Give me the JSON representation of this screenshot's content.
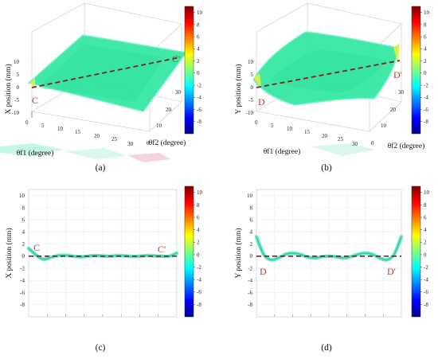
{
  "colormap": {
    "ticks": [
      10,
      8,
      6,
      4,
      2,
      0,
      -2,
      -4,
      -6,
      -8
    ],
    "range": [
      -10,
      11
    ],
    "stops": [
      "#00008f",
      "#0000ff",
      "#0080ff",
      "#00ffff",
      "#80ff80",
      "#ffff00",
      "#ff8000",
      "#ff0000",
      "#800000"
    ]
  },
  "colors": {
    "surface": "#37e8a4",
    "surface_edge": "#72f0c8",
    "dashed_line": "#8b1a1a",
    "point_label": "#c0392b"
  },
  "chart_data": [
    {
      "type": "surface3d",
      "panel_label": "(a)",
      "zlabel": "X position (mm)",
      "xlabel": "θf1 (degree)",
      "ylabel": "θf2 (degree)",
      "x_ticks": [
        "0",
        "5",
        "10",
        "15",
        "20",
        "25",
        "30"
      ],
      "y_ticks": [
        "0",
        "10",
        "20",
        "30"
      ],
      "z_ticks": [
        "-10",
        "-5",
        "0",
        "5",
        "10"
      ],
      "xlim": [
        0,
        30
      ],
      "ylim": [
        0,
        30
      ],
      "zlim": [
        -10,
        10
      ],
      "start_label": "C",
      "end_label": "C'",
      "corner_values": [
        {
          "x": 0,
          "y": 0,
          "z": 0
        },
        {
          "x": 30,
          "y": 30,
          "z": 0
        }
      ]
    },
    {
      "type": "surface3d",
      "panel_label": "(b)",
      "zlabel": "Y position (mm)",
      "xlabel": "θf1 (degree)",
      "ylabel": "θf2 (degree)",
      "x_ticks": [
        "0",
        "5",
        "10",
        "15",
        "20",
        "25",
        "30"
      ],
      "y_ticks": [
        "0",
        "10",
        "20",
        "30"
      ],
      "z_ticks": [
        "-10",
        "-5",
        "0",
        "5",
        "10"
      ],
      "xlim": [
        0,
        30
      ],
      "ylim": [
        0,
        30
      ],
      "zlim": [
        -10,
        10
      ],
      "start_label": "D",
      "end_label": "D'",
      "corner_values": [
        {
          "x": 0,
          "y": 0,
          "z": 2.5
        },
        {
          "x": 30,
          "y": 30,
          "z": 2.5
        }
      ]
    },
    {
      "type": "line",
      "panel_label": "(c)",
      "ylabel": "X position (mm)",
      "y_ticks": [
        "10",
        "8",
        "6",
        "4",
        "2",
        "0",
        "-2",
        "-4",
        "-6",
        "-8"
      ],
      "ylim": [
        -10,
        11
      ],
      "start_label": "C",
      "end_label": "C'",
      "x": [
        0,
        0.05,
        0.1,
        0.15,
        0.2,
        0.25,
        0.3,
        0.35,
        0.4,
        0.45,
        0.5,
        0.55,
        0.6,
        0.65,
        0.7,
        0.75,
        0.8,
        0.85,
        0.9,
        0.95,
        1.0
      ],
      "values": [
        1.3,
        0.2,
        -0.5,
        -0.2,
        0.1,
        0.15,
        0.0,
        -0.1,
        0.0,
        0.1,
        0.05,
        0.0,
        0.1,
        0.05,
        -0.05,
        0.0,
        0.1,
        0.05,
        0.0,
        0.0,
        0.5
      ],
      "reference": 0
    },
    {
      "type": "line",
      "panel_label": "(d)",
      "ylabel": "Y position (mm)",
      "y_ticks": [
        "10",
        "8",
        "6",
        "4",
        "2",
        "0",
        "-2",
        "-4",
        "-6",
        "-8"
      ],
      "ylim": [
        -10,
        11
      ],
      "start_label": "D",
      "end_label": "D'",
      "x": [
        0,
        0.05,
        0.1,
        0.15,
        0.2,
        0.25,
        0.3,
        0.35,
        0.4,
        0.45,
        0.5,
        0.55,
        0.6,
        0.65,
        0.7,
        0.75,
        0.8,
        0.85,
        0.9,
        0.95,
        1.0
      ],
      "values": [
        3.2,
        0.3,
        -0.6,
        -0.3,
        0.3,
        0.5,
        0.3,
        -0.1,
        -0.3,
        -0.1,
        0.0,
        -0.1,
        -0.3,
        -0.1,
        0.3,
        0.5,
        0.3,
        -0.3,
        -0.6,
        0.3,
        3.2
      ],
      "reference": 0
    }
  ]
}
